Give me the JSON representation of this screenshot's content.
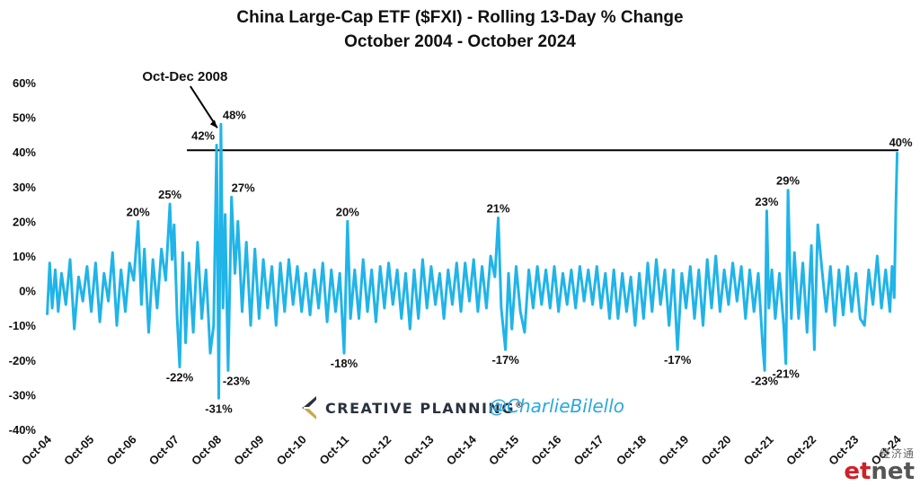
{
  "chart_data": {
    "type": "line",
    "title": "China Large-Cap ETF ($FXI) - Rolling 13-Day % Change",
    "subtitle": "October 2004 - October 2024",
    "xlabel": "",
    "ylabel": "",
    "ylim": [
      -40,
      60
    ],
    "yticks": [
      "60%",
      "50%",
      "40%",
      "30%",
      "20%",
      "10%",
      "0%",
      "-10%",
      "-20%",
      "-30%",
      "-40%"
    ],
    "ytick_values": [
      60,
      50,
      40,
      30,
      20,
      10,
      0,
      -10,
      -20,
      -30,
      -40
    ],
    "xticks": [
      "Oct-04",
      "Oct-05",
      "Oct-06",
      "Oct-07",
      "Oct-08",
      "Oct-09",
      "Oct-10",
      "Oct-11",
      "Oct-12",
      "Oct-13",
      "Oct-14",
      "Oct-15",
      "Oct-16",
      "Oct-17",
      "Oct-18",
      "Oct-19",
      "Oct-20",
      "Oct-21",
      "Oct-22",
      "Oct-23",
      "Oct-24"
    ],
    "xrange": [
      2004.75,
      2024.8
    ],
    "grid": false,
    "line_color": "#20b4e8",
    "reference_line": {
      "y": 40.5,
      "x_start": 2008.05,
      "x_end": 2024.8,
      "color": "#000000"
    },
    "series": [
      {
        "values": [
          [
            2004.76,
            -7
          ],
          [
            2004.82,
            8
          ],
          [
            2004.88,
            -5
          ],
          [
            2004.95,
            6
          ],
          [
            2005.02,
            -6
          ],
          [
            2005.1,
            5
          ],
          [
            2005.2,
            -4
          ],
          [
            2005.3,
            9
          ],
          [
            2005.4,
            -11
          ],
          [
            2005.5,
            4
          ],
          [
            2005.6,
            -3
          ],
          [
            2005.7,
            7
          ],
          [
            2005.8,
            -6
          ],
          [
            2005.9,
            8
          ],
          [
            2006.0,
            -9
          ],
          [
            2006.1,
            5
          ],
          [
            2006.2,
            -3
          ],
          [
            2006.3,
            11
          ],
          [
            2006.4,
            -10
          ],
          [
            2006.5,
            6
          ],
          [
            2006.6,
            -6
          ],
          [
            2006.7,
            8
          ],
          [
            2006.8,
            3
          ],
          [
            2006.9,
            20
          ],
          [
            2006.98,
            -4
          ],
          [
            2007.05,
            12
          ],
          [
            2007.15,
            -12
          ],
          [
            2007.25,
            9
          ],
          [
            2007.35,
            -5
          ],
          [
            2007.45,
            12
          ],
          [
            2007.55,
            3
          ],
          [
            2007.65,
            25
          ],
          [
            2007.7,
            9
          ],
          [
            2007.75,
            19
          ],
          [
            2007.82,
            -8
          ],
          [
            2007.88,
            -22
          ],
          [
            2007.95,
            11
          ],
          [
            2008.02,
            -15
          ],
          [
            2008.1,
            8
          ],
          [
            2008.2,
            -12
          ],
          [
            2008.3,
            14
          ],
          [
            2008.4,
            -8
          ],
          [
            2008.5,
            6
          ],
          [
            2008.6,
            -18
          ],
          [
            2008.68,
            -10
          ],
          [
            2008.75,
            42
          ],
          [
            2008.8,
            -31
          ],
          [
            2008.85,
            48
          ],
          [
            2008.9,
            -5
          ],
          [
            2008.95,
            22
          ],
          [
            2009.02,
            -23
          ],
          [
            2009.1,
            27
          ],
          [
            2009.18,
            5
          ],
          [
            2009.25,
            20
          ],
          [
            2009.35,
            -6
          ],
          [
            2009.45,
            14
          ],
          [
            2009.55,
            -10
          ],
          [
            2009.65,
            12
          ],
          [
            2009.75,
            -8
          ],
          [
            2009.85,
            9
          ],
          [
            2009.95,
            -5
          ],
          [
            2010.05,
            7
          ],
          [
            2010.15,
            -10
          ],
          [
            2010.25,
            8
          ],
          [
            2010.35,
            -6
          ],
          [
            2010.45,
            9
          ],
          [
            2010.55,
            -4
          ],
          [
            2010.65,
            7
          ],
          [
            2010.75,
            -6
          ],
          [
            2010.85,
            5
          ],
          [
            2010.95,
            -7
          ],
          [
            2011.05,
            6
          ],
          [
            2011.15,
            -5
          ],
          [
            2011.25,
            8
          ],
          [
            2011.35,
            -9
          ],
          [
            2011.45,
            6
          ],
          [
            2011.55,
            -6
          ],
          [
            2011.65,
            5
          ],
          [
            2011.75,
            -18
          ],
          [
            2011.83,
            20
          ],
          [
            2011.9,
            -8
          ],
          [
            2012.0,
            6
          ],
          [
            2012.1,
            -8
          ],
          [
            2012.2,
            9
          ],
          [
            2012.3,
            -6
          ],
          [
            2012.4,
            6
          ],
          [
            2012.5,
            -9
          ],
          [
            2012.6,
            7
          ],
          [
            2012.7,
            -5
          ],
          [
            2012.8,
            8
          ],
          [
            2012.9,
            -4
          ],
          [
            2013.0,
            6
          ],
          [
            2013.1,
            -8
          ],
          [
            2013.2,
            5
          ],
          [
            2013.3,
            -11
          ],
          [
            2013.4,
            6
          ],
          [
            2013.5,
            -8
          ],
          [
            2013.6,
            9
          ],
          [
            2013.7,
            -5
          ],
          [
            2013.8,
            7
          ],
          [
            2013.9,
            -4
          ],
          [
            2014.0,
            5
          ],
          [
            2014.1,
            -8
          ],
          [
            2014.2,
            6
          ],
          [
            2014.3,
            -4
          ],
          [
            2014.4,
            8
          ],
          [
            2014.5,
            -6
          ],
          [
            2014.6,
            8
          ],
          [
            2014.7,
            -3
          ],
          [
            2014.8,
            9
          ],
          [
            2014.9,
            -6
          ],
          [
            2015.0,
            7
          ],
          [
            2015.1,
            -5
          ],
          [
            2015.2,
            10
          ],
          [
            2015.3,
            4
          ],
          [
            2015.38,
            21
          ],
          [
            2015.45,
            -5
          ],
          [
            2015.55,
            -17
          ],
          [
            2015.62,
            5
          ],
          [
            2015.7,
            -11
          ],
          [
            2015.8,
            7
          ],
          [
            2015.9,
            -6
          ],
          [
            2016.0,
            -12
          ],
          [
            2016.1,
            6
          ],
          [
            2016.2,
            -5
          ],
          [
            2016.3,
            7
          ],
          [
            2016.4,
            -4
          ],
          [
            2016.5,
            6
          ],
          [
            2016.6,
            -5
          ],
          [
            2016.7,
            7
          ],
          [
            2016.8,
            -6
          ],
          [
            2016.9,
            5
          ],
          [
            2017.0,
            -4
          ],
          [
            2017.1,
            6
          ],
          [
            2017.2,
            -5
          ],
          [
            2017.3,
            7
          ],
          [
            2017.4,
            -3
          ],
          [
            2017.5,
            6
          ],
          [
            2017.6,
            -4
          ],
          [
            2017.7,
            7
          ],
          [
            2017.8,
            -5
          ],
          [
            2017.9,
            5
          ],
          [
            2018.0,
            -8
          ],
          [
            2018.1,
            6
          ],
          [
            2018.2,
            -8
          ],
          [
            2018.3,
            5
          ],
          [
            2018.4,
            -6
          ],
          [
            2018.5,
            4
          ],
          [
            2018.6,
            -10
          ],
          [
            2018.7,
            5
          ],
          [
            2018.8,
            -8
          ],
          [
            2018.9,
            8
          ],
          [
            2019.0,
            -6
          ],
          [
            2019.1,
            9
          ],
          [
            2019.2,
            -4
          ],
          [
            2019.3,
            6
          ],
          [
            2019.4,
            -10
          ],
          [
            2019.5,
            6
          ],
          [
            2019.6,
            -17
          ],
          [
            2019.7,
            5
          ],
          [
            2019.8,
            -5
          ],
          [
            2019.9,
            7
          ],
          [
            2020.0,
            -8
          ],
          [
            2020.1,
            6
          ],
          [
            2020.2,
            -10
          ],
          [
            2020.3,
            9
          ],
          [
            2020.4,
            -5
          ],
          [
            2020.5,
            10
          ],
          [
            2020.6,
            -6
          ],
          [
            2020.7,
            6
          ],
          [
            2020.8,
            -4
          ],
          [
            2020.9,
            8
          ],
          [
            2021.0,
            -3
          ],
          [
            2021.1,
            7
          ],
          [
            2021.2,
            -8
          ],
          [
            2021.3,
            6
          ],
          [
            2021.4,
            -6
          ],
          [
            2021.5,
            5
          ],
          [
            2021.6,
            -15
          ],
          [
            2021.65,
            -23
          ],
          [
            2021.7,
            23
          ],
          [
            2021.75,
            -5
          ],
          [
            2021.82,
            6
          ],
          [
            2021.9,
            -8
          ],
          [
            2022.0,
            5
          ],
          [
            2022.1,
            -10
          ],
          [
            2022.15,
            -21
          ],
          [
            2022.2,
            29
          ],
          [
            2022.28,
            -8
          ],
          [
            2022.35,
            11
          ],
          [
            2022.45,
            -8
          ],
          [
            2022.55,
            8
          ],
          [
            2022.65,
            -12
          ],
          [
            2022.75,
            13
          ],
          [
            2022.82,
            -17
          ],
          [
            2022.9,
            19
          ],
          [
            2023.0,
            6
          ],
          [
            2023.1,
            -6
          ],
          [
            2023.2,
            7
          ],
          [
            2023.3,
            -10
          ],
          [
            2023.4,
            6
          ],
          [
            2023.5,
            -7
          ],
          [
            2023.6,
            7
          ],
          [
            2023.7,
            -6
          ],
          [
            2023.8,
            5
          ],
          [
            2023.9,
            -8
          ],
          [
            2024.0,
            -10
          ],
          [
            2024.1,
            6
          ],
          [
            2024.2,
            -4
          ],
          [
            2024.3,
            10
          ],
          [
            2024.4,
            -5
          ],
          [
            2024.5,
            6
          ],
          [
            2024.6,
            -6
          ],
          [
            2024.65,
            7
          ],
          [
            2024.7,
            -2
          ],
          [
            2024.74,
            25
          ],
          [
            2024.77,
            40
          ]
        ]
      }
    ],
    "data_labels": [
      {
        "text": "20%",
        "x": 2006.9,
        "y": 20
      },
      {
        "text": "25%",
        "x": 2007.65,
        "y": 25
      },
      {
        "text": "-22%",
        "x": 2007.88,
        "y": -22
      },
      {
        "text": "42%",
        "x": 2008.75,
        "y": 42
      },
      {
        "text": "48%",
        "x": 2008.85,
        "y": 48
      },
      {
        "text": "-31%",
        "x": 2008.8,
        "y": -31
      },
      {
        "text": "27%",
        "x": 2009.1,
        "y": 27
      },
      {
        "text": "-23%",
        "x": 2009.02,
        "y": -23
      },
      {
        "text": "20%",
        "x": 2011.83,
        "y": 20
      },
      {
        "text": "-18%",
        "x": 2011.75,
        "y": -18
      },
      {
        "text": "21%",
        "x": 2015.38,
        "y": 21
      },
      {
        "text": "-17%",
        "x": 2015.55,
        "y": -17
      },
      {
        "text": "-17%",
        "x": 2019.6,
        "y": -17
      },
      {
        "text": "23%",
        "x": 2021.7,
        "y": 23
      },
      {
        "text": "-23%",
        "x": 2021.65,
        "y": -23
      },
      {
        "text": "29%",
        "x": 2022.2,
        "y": 29
      },
      {
        "text": "-21%",
        "x": 2022.15,
        "y": -21
      },
      {
        "text": "40%",
        "x": 2024.77,
        "y": 40
      }
    ],
    "annotation": {
      "text": "Oct-Dec 2008",
      "x": 2008.85,
      "y": 48
    }
  },
  "branding": {
    "company": "CREATIVE PLANNING",
    "trademark": "®",
    "handle": "@CharlieBilello",
    "logo_icon": "creative-planning-c-logo",
    "logo_colors": [
      "#2a3240",
      "#c9a84c"
    ],
    "handle_color": "#2aa8e0"
  },
  "watermark": {
    "chinese": "经济通",
    "part1": "et",
    "part2": "net",
    "part1_color": "#cf2027",
    "part2_color": "#555555"
  }
}
